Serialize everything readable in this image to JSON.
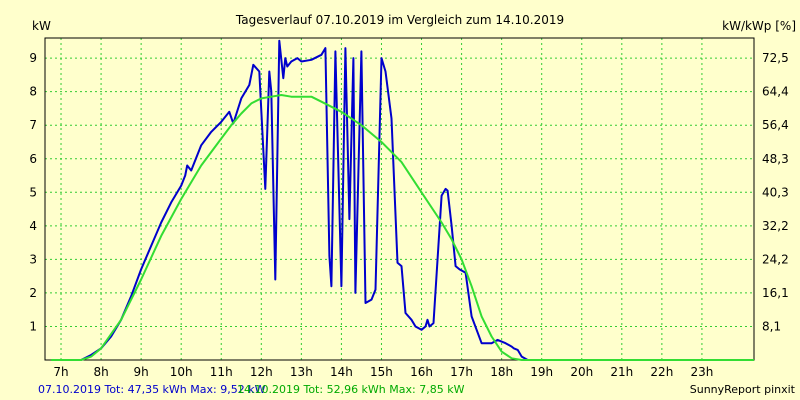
{
  "chart_data": {
    "type": "line",
    "title": "Tagesverlauf 07.10.2019 im Vergleich zum 14.10.2019",
    "ylabel": "kW",
    "ylabel_right": "kW/kWp [%]",
    "xlim": [
      6.6,
      24.3
    ],
    "ylim": [
      0,
      9.6
    ],
    "x_ticks": [
      7,
      8,
      9,
      10,
      11,
      12,
      13,
      14,
      15,
      16,
      17,
      18,
      19,
      20,
      21,
      22,
      23
    ],
    "x_tick_labels": [
      "7h",
      "8h",
      "9h",
      "10h",
      "11h",
      "12h",
      "13h",
      "14h",
      "15h",
      "16h",
      "17h",
      "18h",
      "19h",
      "20h",
      "21h",
      "22h",
      "23h"
    ],
    "y_ticks": [
      1,
      2,
      3,
      4,
      5,
      6,
      7,
      8,
      9
    ],
    "y_tick_labels": [
      "1",
      "2",
      "3",
      "4",
      "5",
      "6",
      "7",
      "8",
      "9"
    ],
    "y2_tick_labels": [
      "8,1",
      "16,1",
      "24,2",
      "32,2",
      "40,3",
      "48,3",
      "56,4",
      "64,4",
      "72,5"
    ],
    "grid": true,
    "series": [
      {
        "color": "#0000cc",
        "x": [
          6.75,
          7.5,
          7.75,
          8.0,
          8.25,
          8.5,
          8.75,
          9.0,
          9.25,
          9.5,
          9.75,
          10.0,
          10.1,
          10.15,
          10.25,
          10.5,
          10.75,
          11.0,
          11.2,
          11.3,
          11.5,
          11.7,
          11.8,
          11.95,
          12.1,
          12.2,
          12.25,
          12.35,
          12.45,
          12.55,
          12.6,
          12.65,
          12.75,
          12.9,
          13.0,
          13.25,
          13.5,
          13.6,
          13.7,
          13.75,
          13.85,
          14.0,
          14.1,
          14.2,
          14.3,
          14.35,
          14.5,
          14.6,
          14.75,
          14.85,
          15.0,
          15.1,
          15.25,
          15.4,
          15.5,
          15.6,
          15.75,
          15.85,
          16.0,
          16.1,
          16.15,
          16.2,
          16.3,
          16.5,
          16.6,
          16.65,
          16.75,
          16.85,
          16.95,
          17.1,
          17.25,
          17.5,
          17.75,
          17.9,
          18.0,
          18.1,
          18.25,
          18.3,
          18.4,
          18.5,
          18.65,
          19.0,
          24.3
        ],
        "values": [
          0,
          0,
          0.15,
          0.35,
          0.7,
          1.2,
          1.9,
          2.7,
          3.4,
          4.1,
          4.7,
          5.2,
          5.5,
          5.8,
          5.65,
          6.4,
          6.8,
          7.1,
          7.4,
          7.05,
          7.8,
          8.2,
          8.8,
          8.6,
          5.1,
          8.6,
          8.0,
          2.4,
          9.52,
          8.4,
          9.0,
          8.75,
          8.9,
          9.0,
          8.9,
          8.95,
          9.1,
          9.3,
          3.1,
          2.2,
          9.2,
          2.2,
          9.3,
          4.2,
          9.0,
          2.0,
          9.2,
          1.7,
          1.8,
          2.1,
          9.0,
          8.6,
          7.2,
          2.9,
          2.8,
          1.4,
          1.2,
          1.0,
          0.9,
          1.0,
          1.2,
          1.0,
          1.1,
          4.9,
          5.1,
          5.05,
          4.0,
          2.8,
          2.7,
          2.6,
          1.3,
          0.5,
          0.5,
          0.6,
          0.55,
          0.5,
          0.4,
          0.35,
          0.3,
          0.1,
          0,
          0,
          0
        ]
      },
      {
        "color": "#33dd33",
        "x": [
          6.75,
          7.5,
          7.75,
          8.0,
          8.5,
          9.0,
          9.5,
          10.0,
          10.5,
          11.0,
          11.25,
          11.5,
          11.75,
          12.0,
          12.25,
          12.5,
          12.75,
          13.0,
          13.25,
          13.5,
          14.0,
          14.5,
          15.0,
          15.5,
          16.0,
          16.5,
          16.75,
          17.0,
          17.25,
          17.5,
          17.75,
          18.0,
          18.25,
          18.5,
          24.3
        ],
        "values": [
          0,
          0,
          0.1,
          0.35,
          1.2,
          2.4,
          3.7,
          4.8,
          5.8,
          6.6,
          7.0,
          7.35,
          7.65,
          7.8,
          7.85,
          7.9,
          7.85,
          7.85,
          7.85,
          7.7,
          7.4,
          7.0,
          6.5,
          5.9,
          5.0,
          4.1,
          3.6,
          3.0,
          2.2,
          1.3,
          0.7,
          0.25,
          0.05,
          0,
          0
        ]
      }
    ]
  },
  "footer": {
    "series1_text": "07.10.2019 Tot: 47,35 kWh Max: 9,52 kW",
    "series2_text": "14.10.2019 Tot: 52,96 kWh Max: 7,85 kW",
    "credit": "SunnyReport pinxit"
  },
  "colors": {
    "background": "#ffffcc",
    "plot_area": "#ffffcc",
    "grid": "#33cc33",
    "axis": "#000000"
  }
}
